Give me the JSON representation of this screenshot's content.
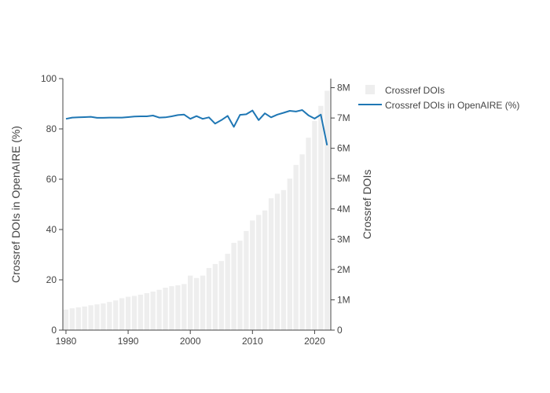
{
  "chart_data": {
    "type": "bar+line",
    "title": "",
    "x": [
      1980,
      1981,
      1982,
      1983,
      1984,
      1985,
      1986,
      1987,
      1988,
      1989,
      1990,
      1991,
      1992,
      1993,
      1994,
      1995,
      1996,
      1997,
      1998,
      1999,
      2000,
      2001,
      2002,
      2003,
      2004,
      2005,
      2006,
      2007,
      2008,
      2009,
      2010,
      2011,
      2012,
      2013,
      2014,
      2015,
      2016,
      2017,
      2018,
      2019,
      2020,
      2021,
      2022
    ],
    "xlabel": "",
    "x_ticks": [
      "1980",
      "1990",
      "2000",
      "2010",
      "2020"
    ],
    "x_tick_values": [
      1980,
      1990,
      2000,
      2010,
      2020
    ],
    "xlim": [
      1979.5,
      2022.6
    ],
    "series": [
      {
        "name": "Crossref DOIs",
        "kind": "bar",
        "axis": "y2",
        "color": "#eeeeee",
        "values": [
          680000,
          720000,
          750000,
          780000,
          820000,
          850000,
          880000,
          930000,
          980000,
          1050000,
          1100000,
          1130000,
          1170000,
          1220000,
          1270000,
          1330000,
          1400000,
          1450000,
          1480000,
          1520000,
          1800000,
          1720000,
          1800000,
          2050000,
          2180000,
          2280000,
          2520000,
          2880000,
          2950000,
          3270000,
          3620000,
          3800000,
          3950000,
          4350000,
          4500000,
          4620000,
          5000000,
          5450000,
          5800000,
          6350000,
          6900000,
          7400000,
          7900000
        ]
      },
      {
        "name": "Crossref DOIs in OpenAIRE (%)",
        "kind": "line",
        "axis": "y",
        "color": "#1f77b4",
        "values": [
          84,
          84.5,
          84.6,
          84.7,
          84.8,
          84.4,
          84.4,
          84.5,
          84.5,
          84.5,
          84.7,
          84.9,
          85,
          85,
          85.3,
          84.5,
          84.6,
          85,
          85.5,
          85.7,
          84,
          85.1,
          84,
          84.6,
          82.1,
          83.5,
          85.2,
          80.8,
          85.6,
          85.8,
          87.3,
          83.5,
          86.2,
          84.6,
          85.7,
          86.4,
          87.2,
          86.9,
          87.5,
          85.4,
          84.1,
          85.7,
          73.5
        ]
      }
    ],
    "y": {
      "label": "Crossref DOIs in OpenAIRE (%)",
      "lim": [
        0,
        100
      ],
      "ticks": [
        "0",
        "20",
        "40",
        "60",
        "80",
        "100"
      ],
      "tick_values": [
        0,
        20,
        40,
        60,
        80,
        100
      ]
    },
    "y2": {
      "label": "Crossref DOIs",
      "lim": [
        0,
        8300000
      ],
      "ticks": [
        "0",
        "1M",
        "2M",
        "3M",
        "4M",
        "5M",
        "6M",
        "7M",
        "8M"
      ],
      "tick_values": [
        0,
        1000000,
        2000000,
        3000000,
        4000000,
        5000000,
        6000000,
        7000000,
        8000000
      ]
    },
    "legend": {
      "position": "top-right",
      "items": [
        "Crossref DOIs",
        "Crossref DOIs in OpenAIRE (%)"
      ]
    }
  }
}
